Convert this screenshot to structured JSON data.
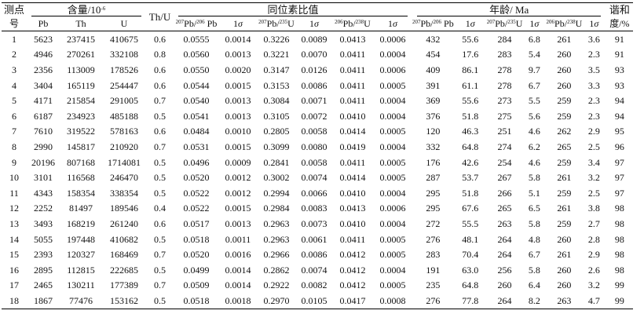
{
  "header": {
    "point_no_top": "测点",
    "point_no_bottom": "号",
    "content_group": "含量/10",
    "content_exp": "-6",
    "th_u": "Th/U",
    "ratio_group": "同位素比值",
    "age_group": "年龄/ Ma",
    "concordance_top": "谐和",
    "concordance_bottom": "度/%",
    "pb": "Pb",
    "th": "Th",
    "u": "U",
    "r76_sup1": "207",
    "r76_mid": "Pb/",
    "r76_sup2": "206",
    "r76_end": "Pb",
    "r75_sup1": "207",
    "r75_mid": "Pb/",
    "r75_sup2": "235",
    "r75_end": "U",
    "r68_sup1": "206",
    "r68_mid": "Pb/",
    "r68_sup2": "238",
    "r68_end": "U",
    "a76_sup1": "207",
    "a76_mid": "Pb/",
    "a76_sup2": "206",
    "a76_end": "Pb",
    "a75_sup1": "207",
    "a75_mid": "Pb/",
    "a75_sup2": "235",
    "a75_end": "U",
    "a68_sup1": "206",
    "a68_mid": "Pb/",
    "a68_sup2": "238",
    "a68_end": "U",
    "one": "1",
    "sigma": "σ"
  },
  "rows": [
    [
      "1",
      "5623",
      "237415",
      "410675",
      "0.6",
      "0.0555",
      "0.0014",
      "0.3226",
      "0.0089",
      "0.0413",
      "0.0006",
      "432",
      "55.6",
      "284",
      "6.8",
      "261",
      "3.6",
      "91"
    ],
    [
      "2",
      "4946",
      "270261",
      "332108",
      "0.8",
      "0.0560",
      "0.0013",
      "0.3221",
      "0.0070",
      "0.0411",
      "0.0004",
      "454",
      "17.6",
      "283",
      "5.4",
      "260",
      "2.3",
      "91"
    ],
    [
      "3",
      "2356",
      "113009",
      "178526",
      "0.6",
      "0.0550",
      "0.0020",
      "0.3147",
      "0.0126",
      "0.0411",
      "0.0006",
      "409",
      "86.1",
      "278",
      "9.7",
      "260",
      "3.5",
      "93"
    ],
    [
      "4",
      "3404",
      "165119",
      "254447",
      "0.6",
      "0.0544",
      "0.0015",
      "0.3153",
      "0.0086",
      "0.0411",
      "0.0005",
      "391",
      "61.1",
      "278",
      "6.7",
      "260",
      "3.3",
      "93"
    ],
    [
      "5",
      "4171",
      "215854",
      "291005",
      "0.7",
      "0.0540",
      "0.0013",
      "0.3084",
      "0.0071",
      "0.0411",
      "0.0004",
      "369",
      "55.6",
      "273",
      "5.5",
      "259",
      "2.3",
      "94"
    ],
    [
      "6",
      "6187",
      "234923",
      "485188",
      "0.5",
      "0.0541",
      "0.0013",
      "0.3105",
      "0.0072",
      "0.0410",
      "0.0004",
      "376",
      "51.8",
      "275",
      "5.6",
      "259",
      "2.3",
      "94"
    ],
    [
      "7",
      "7610",
      "319522",
      "578163",
      "0.6",
      "0.0484",
      "0.0010",
      "0.2805",
      "0.0058",
      "0.0414",
      "0.0005",
      "120",
      "46.3",
      "251",
      "4.6",
      "262",
      "2.9",
      "95"
    ],
    [
      "8",
      "2990",
      "145817",
      "210920",
      "0.7",
      "0.0531",
      "0.0015",
      "0.3099",
      "0.0080",
      "0.0419",
      "0.0004",
      "332",
      "64.8",
      "274",
      "6.2",
      "265",
      "2.5",
      "96"
    ],
    [
      "9",
      "20196",
      "807168",
      "1714081",
      "0.5",
      "0.0496",
      "0.0009",
      "0.2841",
      "0.0058",
      "0.0411",
      "0.0005",
      "176",
      "42.6",
      "254",
      "4.6",
      "259",
      "3.4",
      "97"
    ],
    [
      "10",
      "3101",
      "116568",
      "246470",
      "0.5",
      "0.0520",
      "0.0012",
      "0.3002",
      "0.0074",
      "0.0414",
      "0.0005",
      "287",
      "53.7",
      "267",
      "5.8",
      "261",
      "3.2",
      "97"
    ],
    [
      "11",
      "4343",
      "158354",
      "338354",
      "0.5",
      "0.0522",
      "0.0012",
      "0.2994",
      "0.0066",
      "0.0410",
      "0.0004",
      "295",
      "51.8",
      "266",
      "5.1",
      "259",
      "2.5",
      "97"
    ],
    [
      "12",
      "2252",
      "81497",
      "189546",
      "0.4",
      "0.0522",
      "0.0015",
      "0.2984",
      "0.0083",
      "0.0413",
      "0.0006",
      "295",
      "67.6",
      "265",
      "6.5",
      "261",
      "3.8",
      "98"
    ],
    [
      "13",
      "3493",
      "168219",
      "261240",
      "0.6",
      "0.0517",
      "0.0013",
      "0.2963",
      "0.0073",
      "0.0410",
      "0.0004",
      "272",
      "55.5",
      "263",
      "5.8",
      "259",
      "2.7",
      "98"
    ],
    [
      "14",
      "5055",
      "197448",
      "410682",
      "0.5",
      "0.0518",
      "0.0011",
      "0.2963",
      "0.0061",
      "0.0411",
      "0.0005",
      "276",
      "48.1",
      "264",
      "4.8",
      "260",
      "2.8",
      "98"
    ],
    [
      "15",
      "2393",
      "120327",
      "168469",
      "0.7",
      "0.0520",
      "0.0016",
      "0.2966",
      "0.0086",
      "0.0412",
      "0.0005",
      "283",
      "70.4",
      "264",
      "6.7",
      "261",
      "2.9",
      "98"
    ],
    [
      "16",
      "2895",
      "112815",
      "222685",
      "0.5",
      "0.0499",
      "0.0014",
      "0.2862",
      "0.0074",
      "0.0412",
      "0.0004",
      "191",
      "63.0",
      "256",
      "5.8",
      "260",
      "2.6",
      "98"
    ],
    [
      "17",
      "2465",
      "130211",
      "177389",
      "0.7",
      "0.0509",
      "0.0014",
      "0.2922",
      "0.0082",
      "0.0412",
      "0.0005",
      "235",
      "64.8",
      "260",
      "6.4",
      "260",
      "3.2",
      "99"
    ],
    [
      "18",
      "1867",
      "77476",
      "153162",
      "0.5",
      "0.0518",
      "0.0018",
      "0.2970",
      "0.0105",
      "0.0417",
      "0.0008",
      "276",
      "77.8",
      "264",
      "8.2",
      "263",
      "4.7",
      "99"
    ]
  ]
}
